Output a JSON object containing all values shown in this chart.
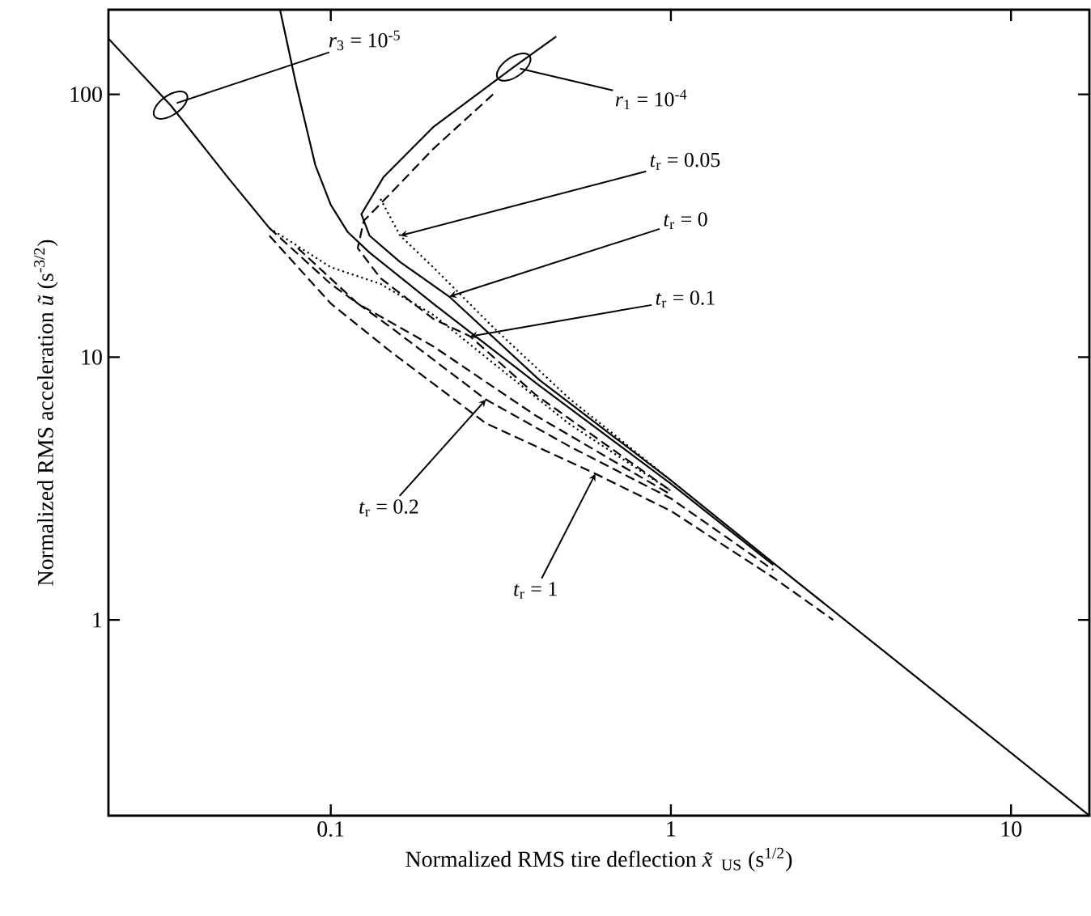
{
  "chart_data": {
    "type": "line",
    "log": "xy",
    "xlabel": "Normalized RMS tire deflection *x̃*$_{US}$ (s$^{1/2}$)",
    "ylabel": "Normalized RMS acceleration *ũ* (s$^{-3/2}$)",
    "xlim": [
      0.0222,
      17
    ],
    "ylim": [
      0.18,
      210
    ],
    "xticks": [
      0.1,
      1,
      10
    ],
    "yticks": [
      1,
      10,
      100
    ],
    "series": [
      {
        "color": "#000000",
        "line_style": "solid",
        "x": [
          0.0222,
          0.0338,
          0.05,
          0.066
        ],
        "values": [
          163,
          91,
          48,
          31
        ]
      },
      {
        "color": "#000000",
        "line_style": "solid",
        "x": [
          0.46,
          0.345,
          0.2,
          0.143,
          0.123,
          0.13,
          0.16,
          0.223,
          0.41,
          1,
          2,
          5,
          17
        ],
        "values": [
          166,
          127,
          75,
          48.5,
          35,
          29,
          23,
          17,
          8.2,
          3.4,
          1.65,
          0.64,
          0.18
        ]
      },
      {
        "color": "#000000",
        "line_style": "solid",
        "x": [
          0.071,
          0.079,
          0.09,
          0.1,
          0.112,
          0.13,
          0.2,
          0.41,
          1,
          2
        ],
        "values": [
          209,
          110,
          54,
          38,
          30,
          25,
          16,
          7.8,
          3.3,
          1.62
        ]
      },
      {
        "color": "#000000",
        "line_style": "dotted",
        "x": [
          0.066,
          0.1,
          0.14,
          0.2,
          0.3,
          0.5,
          1
        ],
        "values": [
          31,
          22,
          19,
          14.5,
          9.5,
          5.6,
          3.1
        ]
      },
      {
        "color": "#000000",
        "line_style": "dotted",
        "x": [
          0.14,
          0.16,
          0.2,
          0.3,
          0.5,
          1
        ],
        "values": [
          40,
          29,
          22,
          13,
          7,
          3.4
        ]
      },
      {
        "color": "#000000",
        "line_style": "dashed",
        "x": [
          0.3,
          0.2,
          0.15,
          0.125,
          0.12,
          0.14,
          0.2,
          0.257,
          0.4,
          1
        ],
        "values": [
          100,
          62,
          42,
          33,
          26,
          20,
          14,
          12,
          7.2,
          3.1
        ]
      },
      {
        "color": "#000000",
        "line_style": "dashed",
        "x": [
          0.08,
          0.12,
          0.2,
          0.4,
          1
        ],
        "values": [
          26,
          16,
          11,
          6,
          3.0
        ]
      },
      {
        "color": "#000000",
        "line_style": "dashed",
        "x": [
          0.066,
          0.1,
          0.15,
          0.286,
          0.5,
          1,
          2
        ],
        "values": [
          31,
          19,
          13,
          6.9,
          4.6,
          2.9,
          1.55
        ]
      },
      {
        "color": "#000000",
        "line_style": "dashed",
        "x": [
          0.066,
          0.1,
          0.15,
          0.286,
          0.6,
          1,
          2,
          3
        ],
        "values": [
          29,
          16,
          10.5,
          5.6,
          3.6,
          2.6,
          1.45,
          1.0
        ]
      }
    ],
    "annotations": [
      {
        "text": "*r*$_{3}$ = 10$^{-5}$",
        "x": 0.0338,
        "y": 91
      },
      {
        "text": "*r*$_{1}$ = 10$^{-4}$",
        "x": 0.345,
        "y": 127
      },
      {
        "text": "*t*$_{r}$ = 0.05",
        "x": 0.16,
        "y": 29
      },
      {
        "text": "*t*$_{r}$ = 0",
        "x": 0.223,
        "y": 17
      },
      {
        "text": "*t*$_{r}$ = 0.1",
        "x": 0.257,
        "y": 12
      },
      {
        "text": "*t*$_{r}$ = 0.2",
        "x": 0.286,
        "y": 6.9
      },
      {
        "text": "*t*$_{r}$ = 1",
        "x": 0.6,
        "y": 3.6
      }
    ]
  }
}
